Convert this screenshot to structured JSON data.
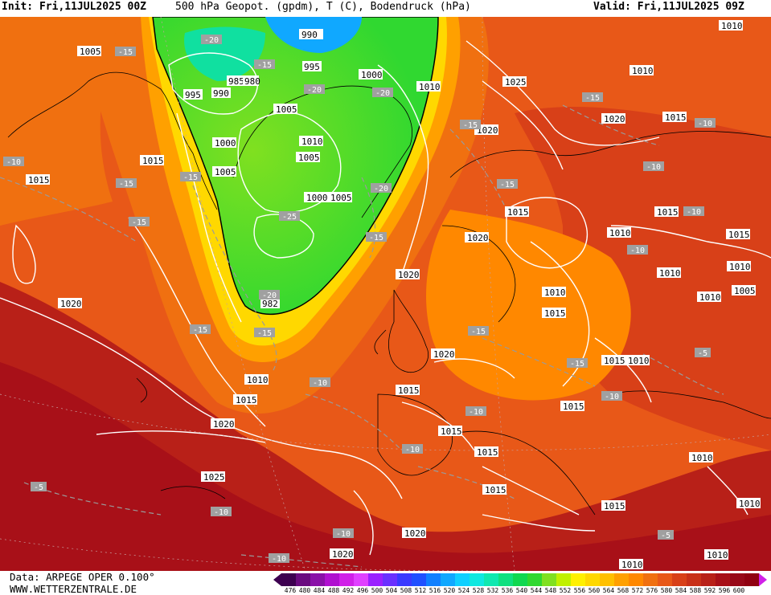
{
  "header": {
    "init": "Init: Fri,11JUL2025 00Z",
    "title": "500 hPa Geopot. (gpdm), T (C), Bodendruck (hPa)",
    "valid": "Valid: Fri,11JUL2025 09Z"
  },
  "footer": {
    "data_source": "Data: ARPEGE OPER 0.100°",
    "website": "WWW.WETTERZENTRALE.DE"
  },
  "legend": {
    "ticks": [
      "476",
      "480",
      "484",
      "488",
      "492",
      "496",
      "500",
      "504",
      "508",
      "512",
      "516",
      "520",
      "524",
      "528",
      "532",
      "536",
      "540",
      "544",
      "548",
      "552",
      "556",
      "560",
      "564",
      "568",
      "572",
      "576",
      "580",
      "584",
      "588",
      "592",
      "596",
      "600"
    ],
    "colors": [
      "#3d0050",
      "#6a0a80",
      "#8a10a8",
      "#b010d0",
      "#d020e8",
      "#e040ff",
      "#9a20ff",
      "#6a30ff",
      "#3a3aff",
      "#2050ff",
      "#1080ff",
      "#10a8ff",
      "#10d0ff",
      "#10e8e0",
      "#10e8b0",
      "#10e080",
      "#10d850",
      "#30d830",
      "#80e020",
      "#c0f000",
      "#fff000",
      "#ffd800",
      "#ffc000",
      "#ffa000",
      "#ff8800",
      "#f07010",
      "#e85818",
      "#d84018",
      "#c83018",
      "#b82018",
      "#a81018",
      "#980818",
      "#900010"
    ]
  },
  "map": {
    "pressure_labels": [
      "1005",
      "1010",
      "1015",
      "1020",
      "1025",
      "995",
      "990",
      "985",
      "980",
      "1000",
      "982"
    ],
    "temperature_labels": [
      "-5",
      "-10",
      "-15",
      "-20",
      "-25"
    ]
  }
}
